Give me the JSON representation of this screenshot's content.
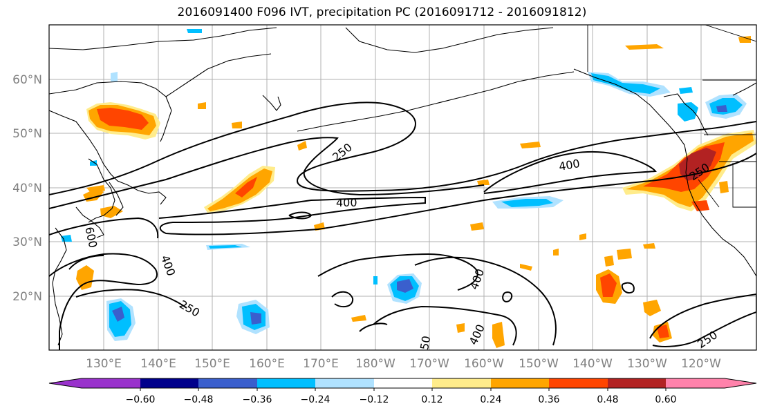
{
  "title": "2016091400 F096 IVT, precipitation PC (2016091712 - 2016091812)",
  "map": {
    "lon_labels": [
      "130°E",
      "140°E",
      "150°E",
      "160°E",
      "170°E",
      "180°W",
      "170°W",
      "160°W",
      "150°W",
      "140°W",
      "130°W",
      "120°W"
    ],
    "lat_labels": [
      "60°N",
      "50°N",
      "40°N",
      "30°N",
      "20°N"
    ],
    "contour_labels": [
      "250",
      "400",
      "400",
      "600",
      "400",
      "250",
      "400",
      "400",
      "250",
      "250",
      "250",
      "250"
    ]
  },
  "colorbar": {
    "colors": [
      "#9932cc",
      "#00008b",
      "#3a5fcd",
      "#00bfff",
      "#b0e2ff",
      "#ffffff",
      "#ffec8b",
      "#ffa500",
      "#ff4500",
      "#b22222",
      "#ff82ab"
    ],
    "tick_labels": [
      "−0.60",
      "−0.48",
      "−0.36",
      "−0.24",
      "−0.12",
      "0.12",
      "0.24",
      "0.36",
      "0.48",
      "0.60"
    ]
  }
}
